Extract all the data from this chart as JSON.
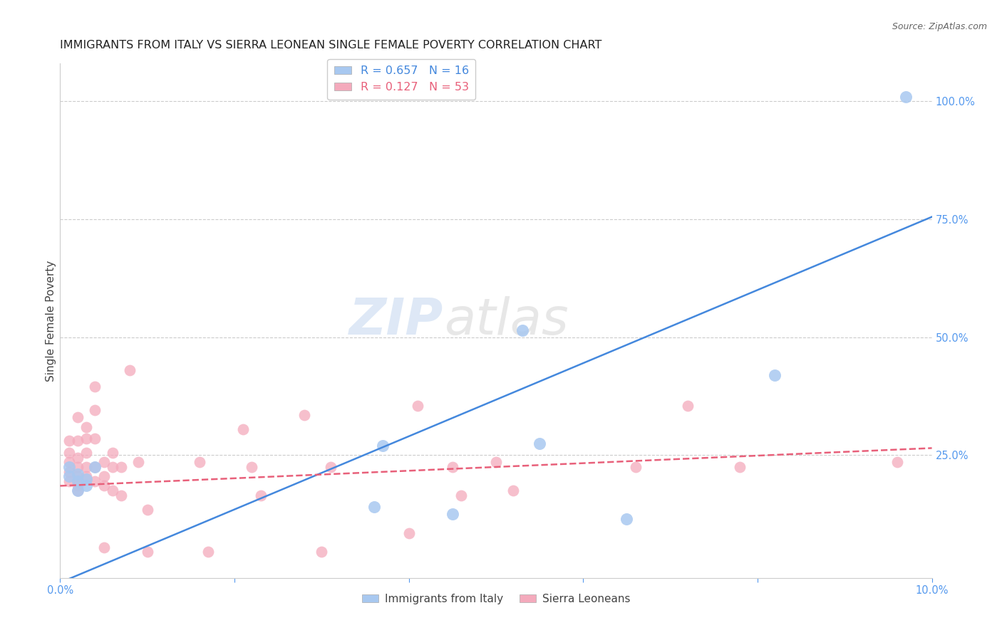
{
  "title": "IMMIGRANTS FROM ITALY VS SIERRA LEONEAN SINGLE FEMALE POVERTY CORRELATION CHART",
  "source": "Source: ZipAtlas.com",
  "ylabel": "Single Female Poverty",
  "xlim": [
    0.0,
    0.1
  ],
  "ylim": [
    -0.01,
    1.08
  ],
  "yticks": [
    0.0,
    0.25,
    0.5,
    0.75,
    1.0
  ],
  "ytick_labels": [
    "",
    "25.0%",
    "50.0%",
    "75.0%",
    "100.0%"
  ],
  "xticks": [
    0.0,
    0.02,
    0.04,
    0.06,
    0.08,
    0.1
  ],
  "xtick_labels": [
    "0.0%",
    "",
    "",
    "",
    "",
    "10.0%"
  ],
  "blue_R": 0.657,
  "blue_N": 16,
  "pink_R": 0.127,
  "pink_N": 53,
  "blue_color": "#a8c8f0",
  "pink_color": "#f4aabc",
  "blue_line_color": "#4488dd",
  "pink_line_color": "#e8607a",
  "legend_label_blue": "Immigrants from Italy",
  "legend_label_pink": "Sierra Leoneans",
  "blue_x": [
    0.001,
    0.001,
    0.002,
    0.002,
    0.002,
    0.003,
    0.003,
    0.004,
    0.036,
    0.037,
    0.045,
    0.053,
    0.055,
    0.065,
    0.082,
    0.097
  ],
  "blue_y": [
    0.225,
    0.205,
    0.21,
    0.195,
    0.175,
    0.185,
    0.2,
    0.225,
    0.14,
    0.27,
    0.125,
    0.515,
    0.275,
    0.115,
    0.42,
    1.01
  ],
  "pink_x": [
    0.001,
    0.001,
    0.001,
    0.001,
    0.001,
    0.002,
    0.002,
    0.002,
    0.002,
    0.002,
    0.002,
    0.002,
    0.003,
    0.003,
    0.003,
    0.003,
    0.003,
    0.004,
    0.004,
    0.004,
    0.004,
    0.004,
    0.005,
    0.005,
    0.005,
    0.005,
    0.006,
    0.006,
    0.006,
    0.007,
    0.007,
    0.008,
    0.009,
    0.01,
    0.01,
    0.016,
    0.017,
    0.021,
    0.022,
    0.023,
    0.028,
    0.03,
    0.031,
    0.04,
    0.041,
    0.045,
    0.046,
    0.05,
    0.052,
    0.066,
    0.072,
    0.078,
    0.096
  ],
  "pink_y": [
    0.28,
    0.255,
    0.235,
    0.215,
    0.195,
    0.33,
    0.28,
    0.245,
    0.225,
    0.205,
    0.185,
    0.175,
    0.31,
    0.285,
    0.255,
    0.225,
    0.205,
    0.395,
    0.345,
    0.285,
    0.225,
    0.195,
    0.235,
    0.205,
    0.185,
    0.055,
    0.255,
    0.225,
    0.175,
    0.225,
    0.165,
    0.43,
    0.235,
    0.135,
    0.045,
    0.235,
    0.045,
    0.305,
    0.225,
    0.165,
    0.335,
    0.045,
    0.225,
    0.085,
    0.355,
    0.225,
    0.165,
    0.235,
    0.175,
    0.225,
    0.355,
    0.225,
    0.235
  ],
  "watermark_zip": "ZIP",
  "watermark_atlas": "atlas",
  "grid_color": "#cccccc",
  "background_color": "#ffffff",
  "title_fontsize": 11.5,
  "axis_label_fontsize": 11,
  "tick_fontsize": 10.5,
  "right_tick_color": "#5599ee",
  "blue_line_x0": 0.0,
  "blue_line_y0": -0.02,
  "blue_line_x1": 0.1,
  "blue_line_y1": 0.755,
  "pink_line_x0": 0.0,
  "pink_line_y0": 0.185,
  "pink_line_x1": 0.1,
  "pink_line_y1": 0.265
}
